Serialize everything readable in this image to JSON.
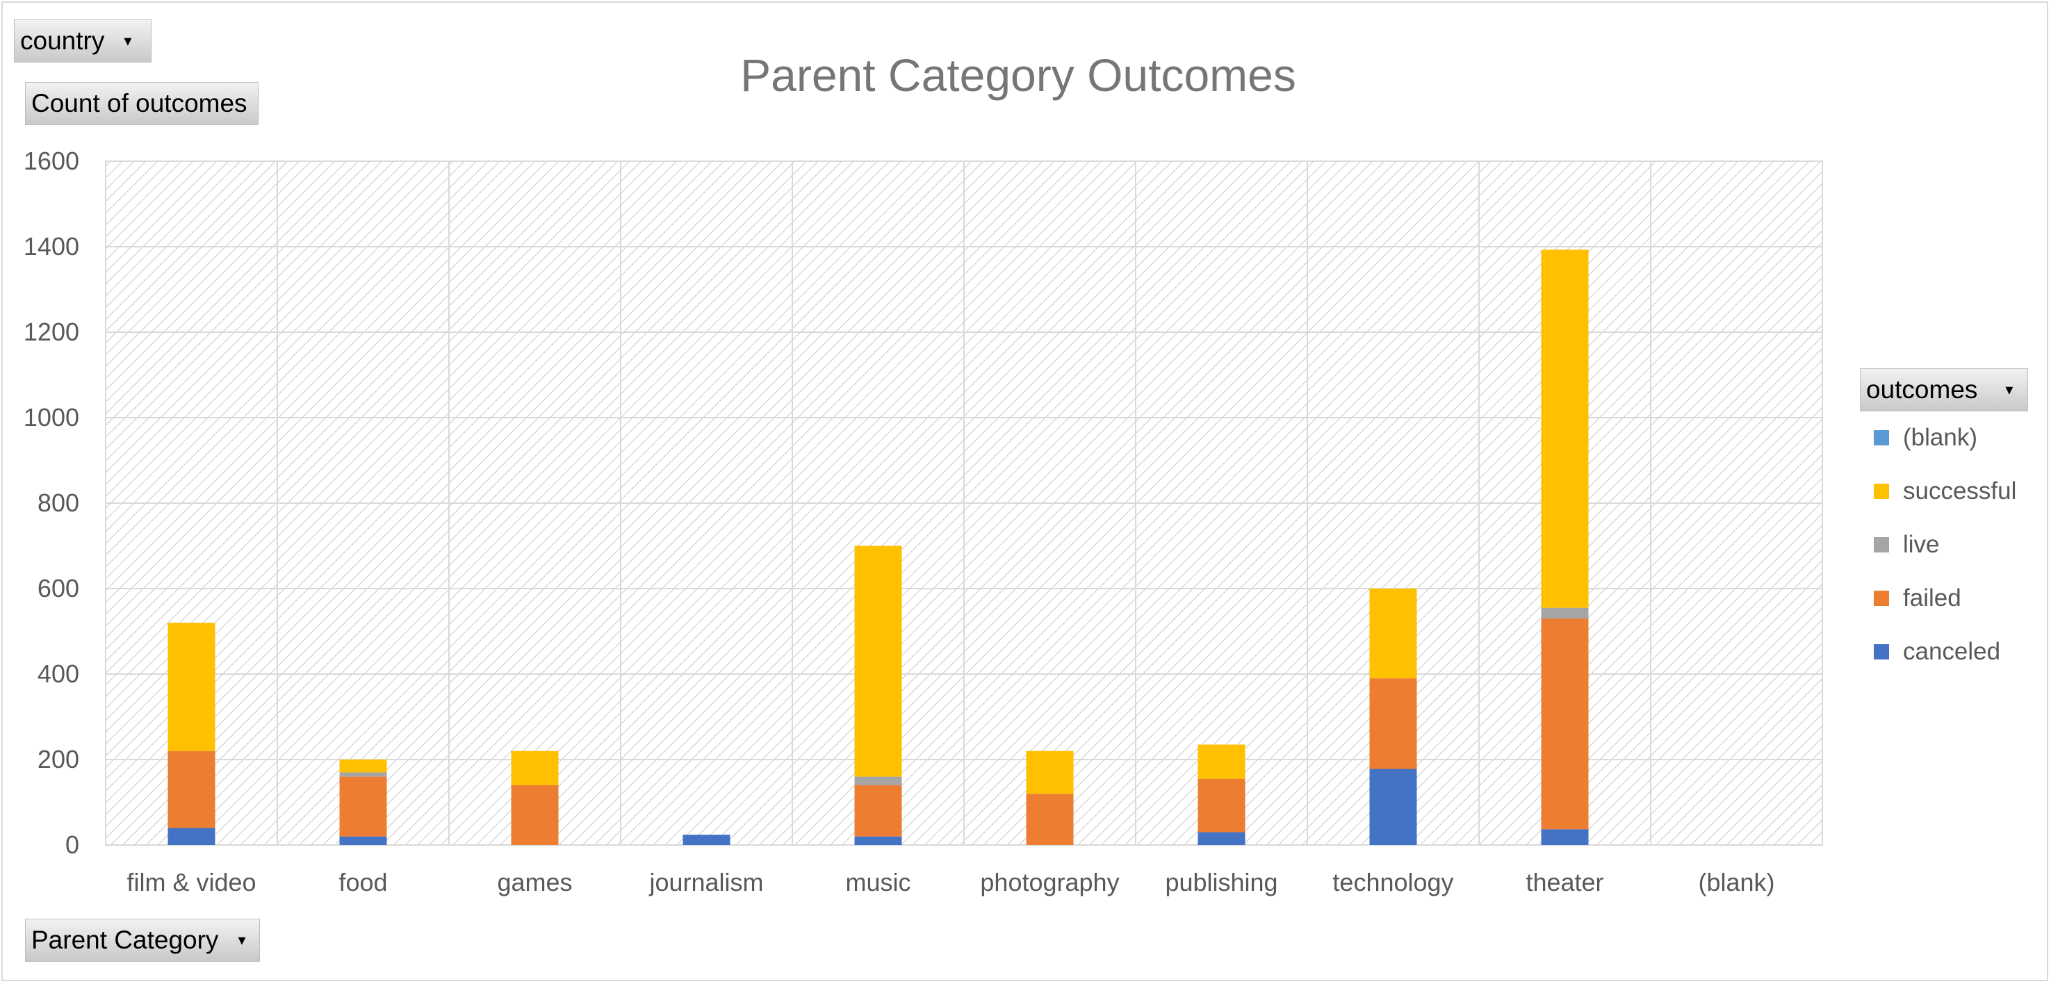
{
  "filters": {
    "country_label": "country",
    "values_label": "Count of outcomes",
    "axis_field_label": "Parent Category",
    "legend_field_label": "outcomes",
    "dropdown_glyph": "▾"
  },
  "colors": {
    "canceled": "#4472c4",
    "failed": "#ed7d31",
    "live": "#a5a5a5",
    "successful": "#ffc000",
    "blank": "#5b9bd5",
    "gridline": "#d9d9d9",
    "hatch": "#bfbfbf",
    "axis_text": "#595959",
    "title_text": "#767676"
  },
  "chart_data": {
    "type": "bar",
    "stacked": true,
    "title": "Parent Category Outcomes",
    "xlabel": "Parent Category",
    "ylabel": "Count of outcomes",
    "ylim": [
      0,
      1600
    ],
    "yticks": [
      "0",
      "200",
      "400",
      "600",
      "800",
      "1000",
      "1200",
      "1400",
      "1600"
    ],
    "categories": [
      "film & video",
      "food",
      "games",
      "journalism",
      "music",
      "photography",
      "publishing",
      "technology",
      "theater",
      "(blank)"
    ],
    "series": [
      {
        "name": "canceled",
        "values": [
          40,
          20,
          0,
          24,
          20,
          0,
          30,
          178,
          37,
          0
        ]
      },
      {
        "name": "failed",
        "values": [
          180,
          140,
          140,
          0,
          120,
          120,
          125,
          212,
          493,
          0
        ]
      },
      {
        "name": "live",
        "values": [
          0,
          10,
          0,
          0,
          20,
          0,
          0,
          0,
          25,
          0
        ]
      },
      {
        "name": "successful",
        "values": [
          300,
          30,
          80,
          0,
          540,
          100,
          80,
          210,
          838,
          0
        ]
      },
      {
        "name": "(blank)",
        "values": [
          0,
          0,
          0,
          0,
          0,
          0,
          0,
          0,
          0,
          0
        ]
      }
    ],
    "legend": {
      "position": "right",
      "order": [
        "(blank)",
        "successful",
        "live",
        "failed",
        "canceled"
      ]
    },
    "grid": true
  }
}
